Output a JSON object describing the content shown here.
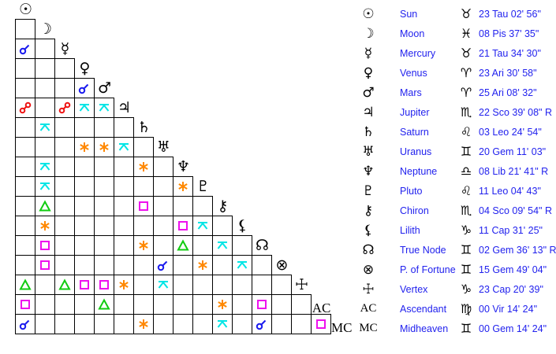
{
  "planets": [
    {
      "name": "Sun",
      "glyph": "☉",
      "sign_glyph": "♉",
      "position": "23 Tau 02' 56\""
    },
    {
      "name": "Moon",
      "glyph": "☽",
      "sign_glyph": "♓",
      "position": "08 Pis 37' 35\""
    },
    {
      "name": "Mercury",
      "glyph": "☿",
      "sign_glyph": "♉",
      "position": "21 Tau 34' 30\""
    },
    {
      "name": "Venus",
      "glyph": "♀",
      "sign_glyph": "♈",
      "position": "23 Ari 30' 58\""
    },
    {
      "name": "Mars",
      "glyph": "♂",
      "sign_glyph": "♈",
      "position": "25 Ari 08' 32\""
    },
    {
      "name": "Jupiter",
      "glyph": "♃",
      "sign_glyph": "♏",
      "position": "22 Sco 39' 08\" R"
    },
    {
      "name": "Saturn",
      "glyph": "♄",
      "sign_glyph": "♌",
      "position": "03 Leo 24' 54\""
    },
    {
      "name": "Uranus",
      "glyph": "♅",
      "sign_glyph": "♊",
      "position": "20 Gem 11' 03\""
    },
    {
      "name": "Neptune",
      "glyph": "♆",
      "sign_glyph": "♎",
      "position": "08 Lib 21' 41\" R"
    },
    {
      "name": "Pluto",
      "glyph": "♇",
      "sign_glyph": "♌",
      "position": "11 Leo 04' 43\""
    },
    {
      "name": "Chiron",
      "glyph": "⚷",
      "sign_glyph": "♏",
      "position": "04 Sco 09' 54\" R"
    },
    {
      "name": "Lilith",
      "glyph": "⚸",
      "sign_glyph": "♑",
      "position": "11 Cap 31' 25\""
    },
    {
      "name": "True Node",
      "glyph": "☊",
      "sign_glyph": "♊",
      "position": "02 Gem 36' 13\" R"
    },
    {
      "name": "P. of Fortune",
      "glyph": "⊗",
      "sign_glyph": "♊",
      "position": "15 Gem 49' 04\""
    },
    {
      "name": "Vertex",
      "glyph": "☩",
      "sign_glyph": "♑",
      "position": "23 Cap 20' 39\""
    },
    {
      "name": "Ascendant",
      "glyph": "AC",
      "sign_glyph": "♍",
      "position": "00 Vir 14' 24\""
    },
    {
      "name": "Midheaven",
      "glyph": "MC",
      "sign_glyph": "♊",
      "position": "00 Gem 14' 24\""
    }
  ],
  "aspect_colors": {
    "conjunction": "#1a1aee",
    "opposition": "#ee1111",
    "trine": "#11cc11",
    "square": "#ee11ee",
    "sextile": "#ff8800",
    "quincunx": "#00e5e5"
  },
  "aspects": [
    {
      "planet": "Mercury",
      "with": "Sun",
      "type": "conjunction"
    },
    {
      "planet": "Mars",
      "with": "Venus",
      "type": "conjunction"
    },
    {
      "planet": "Jupiter",
      "with": "Sun",
      "type": "opposition"
    },
    {
      "planet": "Jupiter",
      "with": "Mercury",
      "type": "opposition"
    },
    {
      "planet": "Jupiter",
      "with": "Venus",
      "type": "quincunx"
    },
    {
      "planet": "Jupiter",
      "with": "Mars",
      "type": "quincunx"
    },
    {
      "planet": "Saturn",
      "with": "Moon",
      "type": "quincunx"
    },
    {
      "planet": "Uranus",
      "with": "Venus",
      "type": "sextile"
    },
    {
      "planet": "Uranus",
      "with": "Mars",
      "type": "sextile"
    },
    {
      "planet": "Uranus",
      "with": "Jupiter",
      "type": "quincunx"
    },
    {
      "planet": "Neptune",
      "with": "Moon",
      "type": "quincunx"
    },
    {
      "planet": "Neptune",
      "with": "Saturn",
      "type": "sextile"
    },
    {
      "planet": "Pluto",
      "with": "Moon",
      "type": "quincunx"
    },
    {
      "planet": "Pluto",
      "with": "Neptune",
      "type": "sextile"
    },
    {
      "planet": "Chiron",
      "with": "Moon",
      "type": "trine"
    },
    {
      "planet": "Chiron",
      "with": "Saturn",
      "type": "square"
    },
    {
      "planet": "Lilith",
      "with": "Moon",
      "type": "sextile"
    },
    {
      "planet": "Lilith",
      "with": "Neptune",
      "type": "square"
    },
    {
      "planet": "Lilith",
      "with": "Pluto",
      "type": "quincunx"
    },
    {
      "planet": "True Node",
      "with": "Moon",
      "type": "square"
    },
    {
      "planet": "True Node",
      "with": "Saturn",
      "type": "sextile"
    },
    {
      "planet": "True Node",
      "with": "Neptune",
      "type": "trine"
    },
    {
      "planet": "True Node",
      "with": "Chiron",
      "type": "quincunx"
    },
    {
      "planet": "P. of Fortune",
      "with": "Moon",
      "type": "square"
    },
    {
      "planet": "P. of Fortune",
      "with": "Uranus",
      "type": "conjunction"
    },
    {
      "planet": "P. of Fortune",
      "with": "Pluto",
      "type": "sextile"
    },
    {
      "planet": "P. of Fortune",
      "with": "Lilith",
      "type": "quincunx"
    },
    {
      "planet": "Vertex",
      "with": "Sun",
      "type": "trine"
    },
    {
      "planet": "Vertex",
      "with": "Mercury",
      "type": "trine"
    },
    {
      "planet": "Vertex",
      "with": "Venus",
      "type": "square"
    },
    {
      "planet": "Vertex",
      "with": "Mars",
      "type": "square"
    },
    {
      "planet": "Vertex",
      "with": "Jupiter",
      "type": "sextile"
    },
    {
      "planet": "Vertex",
      "with": "Uranus",
      "type": "quincunx"
    },
    {
      "planet": "Ascendant",
      "with": "Sun",
      "type": "square"
    },
    {
      "planet": "Ascendant",
      "with": "Mars",
      "type": "trine"
    },
    {
      "planet": "Ascendant",
      "with": "Chiron",
      "type": "sextile"
    },
    {
      "planet": "Ascendant",
      "with": "True Node",
      "type": "square"
    },
    {
      "planet": "Midheaven",
      "with": "Sun",
      "type": "conjunction"
    },
    {
      "planet": "Midheaven",
      "with": "Saturn",
      "type": "sextile"
    },
    {
      "planet": "Midheaven",
      "with": "Chiron",
      "type": "quincunx"
    },
    {
      "planet": "Midheaven",
      "with": "True Node",
      "type": "conjunction"
    },
    {
      "planet": "Midheaven",
      "with": "Ascendant",
      "type": "square"
    }
  ]
}
